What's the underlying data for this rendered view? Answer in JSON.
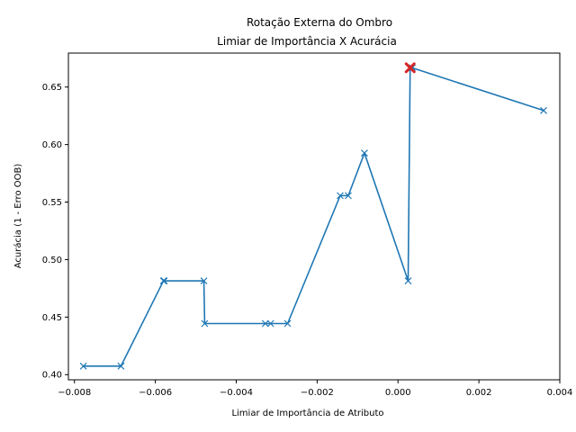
{
  "chart_data": {
    "type": "line",
    "title": "Rotação Externa do Ombro",
    "subtitle": "Limiar de Importância X Acurácia",
    "xlabel": "Limiar de Importância de Atributo",
    "ylabel": "Acurácia (1 - Erro OOB)",
    "xlim": [
      -0.00815,
      0.004
    ],
    "ylim": [
      0.3955,
      0.6795
    ],
    "x_ticks": [
      -0.008,
      -0.006,
      -0.004,
      -0.002,
      0.0,
      0.002,
      0.004
    ],
    "x_tick_labels": [
      "−0.008",
      "−0.006",
      "−0.004",
      "−0.002",
      "0.000",
      "0.002",
      "0.004"
    ],
    "y_ticks": [
      0.4,
      0.45,
      0.5,
      0.55,
      0.6,
      0.65
    ],
    "y_tick_labels": [
      "0.40",
      "0.45",
      "0.50",
      "0.55",
      "0.60",
      "0.65"
    ],
    "grid": false,
    "legend": "none",
    "series": [
      {
        "color": "#1f77b4",
        "marker": "x",
        "x": [
          -0.00778,
          -0.00685,
          -0.0058,
          -0.00578,
          -0.0048,
          -0.00478,
          -0.00328,
          -0.00315,
          -0.00273,
          -0.00143,
          -0.00123,
          -0.00083,
          0.00025,
          0.0003,
          0.00035,
          0.0036
        ],
        "y": [
          0.4074,
          0.4074,
          0.4815,
          0.4815,
          0.4815,
          0.4444,
          0.4444,
          0.4444,
          0.4444,
          0.5556,
          0.5556,
          0.5926,
          0.4815,
          0.6667,
          0.6667,
          0.6296
        ]
      }
    ],
    "highlight": {
      "x": 0.0003,
      "y": 0.6667,
      "color": "#d62728",
      "marker": "X"
    }
  }
}
